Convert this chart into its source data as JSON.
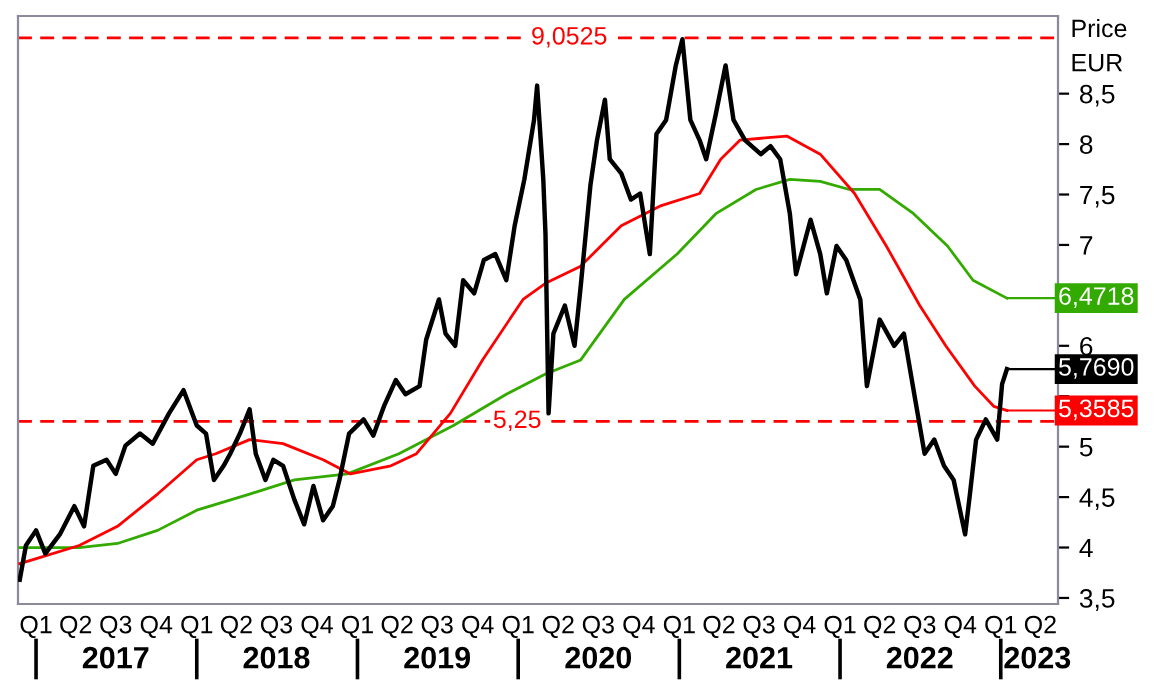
{
  "chart_data": {
    "type": "line",
    "ylabel": "Price\nEUR",
    "xlim": [
      "2016-11-21",
      "2023-05-11"
    ],
    "ylim": [
      3.44,
      9.27
    ],
    "xticks": [
      {
        "value": "2017-01-01",
        "label": "Q1"
      },
      {
        "value": "2017-04-01",
        "label": "Q2"
      },
      {
        "value": "2017-07-01",
        "label": "Q3"
      },
      {
        "value": "2017-10-01",
        "label": "Q4"
      },
      {
        "value": "2018-01-01",
        "label": "Q1"
      },
      {
        "value": "2018-04-01",
        "label": "Q2"
      },
      {
        "value": "2018-07-01",
        "label": "Q3"
      },
      {
        "value": "2018-10-01",
        "label": "Q4"
      },
      {
        "value": "2019-01-01",
        "label": "Q1"
      },
      {
        "value": "2019-04-01",
        "label": "Q2"
      },
      {
        "value": "2019-07-01",
        "label": "Q3"
      },
      {
        "value": "2019-10-01",
        "label": "Q4"
      },
      {
        "value": "2020-01-01",
        "label": "Q1"
      },
      {
        "value": "2020-04-01",
        "label": "Q2"
      },
      {
        "value": "2020-07-01",
        "label": "Q3"
      },
      {
        "value": "2020-10-01",
        "label": "Q4"
      },
      {
        "value": "2021-01-01",
        "label": "Q1"
      },
      {
        "value": "2021-04-01",
        "label": "Q2"
      },
      {
        "value": "2021-07-01",
        "label": "Q3"
      },
      {
        "value": "2021-10-01",
        "label": "Q4"
      },
      {
        "value": "2022-01-01",
        "label": "Q1"
      },
      {
        "value": "2022-04-01",
        "label": "Q2"
      },
      {
        "value": "2022-07-01",
        "label": "Q3"
      },
      {
        "value": "2022-10-01",
        "label": "Q4"
      },
      {
        "value": "2023-01-01",
        "label": "Q1"
      },
      {
        "value": "2023-04-01",
        "label": "Q2"
      }
    ],
    "x2ticks": [
      {
        "value": "2017-07-01",
        "label": "2017"
      },
      {
        "value": "2018-07-01",
        "label": "2018"
      },
      {
        "value": "2019-07-01",
        "label": "2019"
      },
      {
        "value": "2020-07-01",
        "label": "2020"
      },
      {
        "value": "2021-07-01",
        "label": "2021"
      },
      {
        "value": "2022-07-01",
        "label": "2022"
      },
      {
        "value": "2023-03-25",
        "label": "2023"
      }
    ],
    "x2lim": [
      "2016-11-21",
      "2023-05-11"
    ],
    "yticks": [
      {
        "value": 3.5,
        "label": "3,5"
      },
      4,
      {
        "value": 4.5,
        "label": "4,5"
      },
      5,
      {
        "value": 5.5,
        "label": null
      },
      6,
      {
        "value": 6.5,
        "label": null
      },
      7,
      {
        "value": 7.5,
        "label": "7,5"
      },
      8,
      {
        "value": 8.5,
        "label": "8,5"
      }
    ],
    "ref_lines": [
      {
        "axis": "y",
        "value": 9.0525,
        "label": "9,0525",
        "color": "#ff0000",
        "line_style": "dashed"
      },
      {
        "axis": "y",
        "value": 5.25,
        "label": "5,25",
        "color": "#ff0000",
        "line_style": "dashed"
      }
    ],
    "series": [
      {
        "color": "#33aa00",
        "x": [
          "2016-11-25",
          "2017-04-09",
          "2017-07-05",
          "2017-10-04",
          "2018-01-01",
          "2018-05-01",
          "2018-08-11",
          "2018-12-09",
          "2019-04-05",
          "2019-08-07",
          "2019-12-05",
          "2020-03-03",
          "2020-05-22",
          "2020-08-29",
          "2020-12-27",
          "2021-03-25",
          "2021-06-24",
          "2021-09-09",
          "2021-11-17",
          "2022-01-22",
          "2022-04-01",
          "2022-06-17",
          "2022-09-02",
          "2022-10-30",
          "2023-01-15"
        ],
        "values": [
          4.0,
          4.0,
          4.04,
          4.17,
          4.37,
          4.53,
          4.67,
          4.73,
          4.93,
          5.21,
          5.52,
          5.72,
          5.86,
          6.46,
          6.91,
          7.31,
          7.55,
          7.65,
          7.63,
          7.55,
          7.55,
          7.31,
          6.99,
          6.65,
          6.4718
        ],
        "value_labels": [
          null,
          null,
          null,
          null,
          null,
          null,
          null,
          null,
          null,
          null,
          null,
          null,
          null,
          null,
          null,
          null,
          null,
          null,
          null,
          null,
          null,
          null,
          null,
          null,
          "6,4718"
        ]
      },
      {
        "color": "#ff0000",
        "x": [
          "2016-11-25",
          "2017-04-09",
          "2017-07-05",
          "2017-10-04",
          "2018-01-01",
          "2018-02-13",
          "2018-05-01",
          "2018-07-16",
          "2018-10-15",
          "2018-12-16",
          "2019-03-18",
          "2019-05-15",
          "2019-07-31",
          "2019-10-12",
          "2020-01-12",
          "2020-03-03",
          "2020-05-22",
          "2020-08-22",
          "2020-11-21",
          "2021-02-16",
          "2021-04-05",
          "2021-05-19",
          "2021-09-02",
          "2021-11-17",
          "2022-02-03",
          "2022-04-16",
          "2022-07-01",
          "2022-08-29",
          "2022-11-03",
          "2022-12-16",
          "2023-01-15"
        ],
        "values": [
          3.84,
          4.02,
          4.21,
          4.53,
          4.87,
          4.93,
          5.07,
          5.03,
          4.87,
          4.73,
          4.81,
          4.93,
          5.33,
          5.86,
          6.46,
          6.62,
          6.79,
          7.19,
          7.39,
          7.51,
          7.85,
          8.04,
          8.08,
          7.9,
          7.51,
          6.99,
          6.4,
          6.0,
          5.6,
          5.4,
          5.3585
        ],
        "value_labels": [
          null,
          null,
          null,
          null,
          null,
          null,
          null,
          null,
          null,
          null,
          null,
          null,
          null,
          null,
          null,
          null,
          null,
          null,
          null,
          null,
          null,
          null,
          null,
          null,
          null,
          null,
          null,
          null,
          null,
          null,
          "5,3585"
        ]
      },
      {
        "color": "#000000",
        "x": [
          "2016-11-25",
          "2016-12-09",
          "2017-01-01",
          "2017-01-22",
          "2017-02-24",
          "2017-03-29",
          "2017-04-20",
          "2017-05-11",
          "2017-06-10",
          "2017-07-01",
          "2017-07-23",
          "2017-08-25",
          "2017-09-23",
          "2017-10-30",
          "2017-12-02",
          "2018-01-01",
          "2018-01-22",
          "2018-02-09",
          "2018-03-03",
          "2018-03-18",
          "2018-04-09",
          "2018-05-01",
          "2018-05-15",
          "2018-06-06",
          "2018-06-24",
          "2018-07-16",
          "2018-08-11",
          "2018-09-02",
          "2018-09-23",
          "2018-10-15",
          "2018-11-06",
          "2018-11-21",
          "2018-12-13",
          "2019-01-15",
          "2019-02-06",
          "2019-03-03",
          "2019-03-29",
          "2019-04-20",
          "2019-05-22",
          "2019-06-06",
          "2019-07-05",
          "2019-07-20",
          "2019-08-11",
          "2019-08-29",
          "2019-09-23",
          "2019-10-15",
          "2019-11-10",
          "2019-12-05",
          "2019-12-24",
          "2020-01-15",
          "2020-02-06",
          "2020-02-13",
          "2020-02-27",
          "2020-03-03",
          "2020-03-10",
          "2020-03-21",
          "2020-04-16",
          "2020-05-08",
          "2020-05-22",
          "2020-06-13",
          "2020-06-28",
          "2020-07-16",
          "2020-07-27",
          "2020-08-22",
          "2020-09-13",
          "2020-10-04",
          "2020-10-26",
          "2020-11-10",
          "2020-12-02",
          "2020-12-24",
          "2021-01-08",
          "2021-01-26",
          "2021-02-16",
          "2021-03-03",
          "2021-03-25",
          "2021-04-16",
          "2021-05-04",
          "2021-05-30",
          "2021-07-05",
          "2021-07-27",
          "2021-08-18",
          "2021-09-09",
          "2021-09-23",
          "2021-10-26",
          "2021-11-17",
          "2021-12-02",
          "2021-12-24",
          "2022-01-15",
          "2022-02-16",
          "2022-03-03",
          "2022-04-01",
          "2022-05-04",
          "2022-05-26",
          "2022-06-21",
          "2022-07-12",
          "2022-08-03",
          "2022-08-25",
          "2022-09-16",
          "2022-10-12",
          "2022-10-23",
          "2022-11-06",
          "2022-11-28",
          "2022-12-24",
          "2023-01-04",
          "2023-01-15"
        ],
        "values": [
          3.68,
          4.02,
          4.17,
          3.94,
          4.13,
          4.41,
          4.21,
          4.81,
          4.87,
          4.73,
          5.01,
          5.13,
          5.03,
          5.33,
          5.56,
          5.21,
          5.13,
          4.67,
          4.81,
          4.93,
          5.13,
          5.37,
          4.93,
          4.67,
          4.87,
          4.81,
          4.47,
          4.23,
          4.61,
          4.27,
          4.41,
          4.67,
          5.13,
          5.27,
          5.11,
          5.41,
          5.66,
          5.52,
          5.6,
          6.06,
          6.46,
          6.12,
          6.0,
          6.65,
          6.52,
          6.85,
          6.91,
          6.65,
          7.19,
          7.65,
          8.24,
          8.58,
          7.65,
          7.11,
          5.33,
          6.12,
          6.4,
          6.0,
          6.59,
          7.59,
          8.04,
          8.44,
          7.85,
          7.71,
          7.45,
          7.51,
          6.91,
          8.1,
          8.24,
          8.78,
          9.04,
          8.24,
          8.04,
          7.85,
          8.3,
          8.78,
          8.24,
          8.04,
          7.9,
          7.98,
          7.85,
          7.31,
          6.71,
          7.25,
          6.91,
          6.52,
          6.99,
          6.85,
          6.46,
          5.6,
          6.26,
          6.0,
          6.12,
          5.46,
          4.93,
          5.07,
          4.81,
          4.67,
          4.13,
          4.53,
          5.07,
          5.27,
          5.07,
          5.62,
          5.769
        ],
        "value_labels": [
          null,
          null,
          null,
          null,
          null,
          null,
          null,
          null,
          null,
          null,
          null,
          null,
          null,
          null,
          null,
          null,
          null,
          null,
          null,
          null,
          null,
          null,
          null,
          null,
          null,
          null,
          null,
          null,
          null,
          null,
          null,
          null,
          null,
          null,
          null,
          null,
          null,
          null,
          null,
          null,
          null,
          null,
          null,
          null,
          null,
          null,
          null,
          null,
          null,
          null,
          null,
          null,
          null,
          null,
          null,
          null,
          null,
          null,
          null,
          null,
          null,
          null,
          null,
          null,
          null,
          null,
          null,
          null,
          null,
          null,
          null,
          null,
          null,
          null,
          null,
          null,
          null,
          null,
          null,
          null,
          null,
          null,
          null,
          null,
          null,
          null,
          null,
          null,
          null,
          null,
          null,
          null,
          null,
          null,
          null,
          null,
          null,
          null,
          null,
          null,
          null,
          null,
          null,
          null,
          "5,7690"
        ]
      }
    ]
  }
}
